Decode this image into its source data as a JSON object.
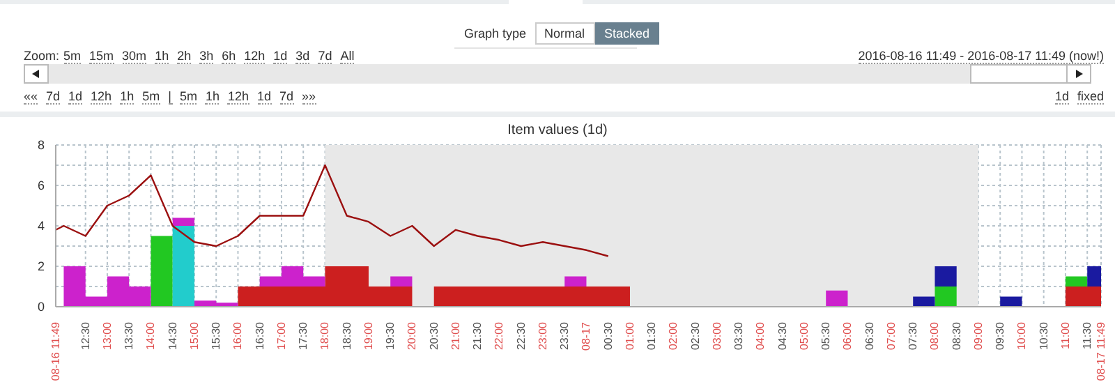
{
  "chart_data": {
    "type": "area",
    "title": "Item values (1d)",
    "stacked": true,
    "grid": true,
    "legend": false,
    "marker": "none",
    "annotations": [
      "Graph type",
      "Normal",
      "Stacked",
      "Zoom:",
      "5m",
      "15m",
      "30m",
      "1h",
      "2h",
      "3h",
      "6h",
      "12h",
      "1d",
      "3d",
      "7d",
      "All",
      "2016-08-16 11:49 - 2016-08-17 11:49 (now!)",
      "««",
      "7d",
      "1d",
      "12h",
      "1h",
      "5m",
      "|",
      "5m",
      "1h",
      "12h",
      "1d",
      "7d",
      "»»",
      "1d",
      "fixed"
    ],
    "x": [
      "2016-08-16T11:49",
      "2016-08-16T12:00",
      "2016-08-16T12:30",
      "2016-08-16T13:00",
      "2016-08-16T13:30",
      "2016-08-16T14:00",
      "2016-08-16T14:30",
      "2016-08-16T15:00",
      "2016-08-16T15:30",
      "2016-08-16T16:00",
      "2016-08-16T16:30",
      "2016-08-16T17:00",
      "2016-08-16T17:30",
      "2016-08-16T18:00",
      "2016-08-16T18:30",
      "2016-08-16T19:00",
      "2016-08-16T19:30",
      "2016-08-16T20:00",
      "2016-08-16T20:30",
      "2016-08-16T21:00",
      "2016-08-16T21:30",
      "2016-08-16T22:00",
      "2016-08-16T22:30",
      "2016-08-16T23:00",
      "2016-08-16T23:30",
      "2016-08-17T00:00",
      "2016-08-17T00:30",
      "2016-08-17T01:00",
      "2016-08-17T01:30",
      "2016-08-17T02:00",
      "2016-08-17T02:30",
      "2016-08-17T03:00",
      "2016-08-17T03:30",
      "2016-08-17T04:00",
      "2016-08-17T04:30",
      "2016-08-17T05:00",
      "2016-08-17T05:30",
      "2016-08-17T06:00",
      "2016-08-17T06:30",
      "2016-08-17T07:00",
      "2016-08-17T07:30",
      "2016-08-17T08:00",
      "2016-08-17T08:30",
      "2016-08-17T09:00",
      "2016-08-17T09:30",
      "2016-08-17T10:00",
      "2016-08-17T10:30",
      "2016-08-17T11:00",
      "2016-08-17T11:30",
      "2016-08-17T11:49"
    ],
    "series": [
      {
        "color": "#cc1f1f",
        "values": [
          0,
          0,
          0,
          0,
          0,
          0,
          0,
          0,
          0,
          1,
          1,
          1,
          1,
          2,
          2,
          1,
          1,
          0,
          1,
          1,
          1,
          1,
          1,
          1,
          1,
          1,
          1,
          0,
          0,
          0,
          0,
          0,
          0,
          0,
          0,
          0,
          0,
          0,
          0,
          0,
          0,
          0,
          0,
          0,
          0,
          0,
          0,
          1,
          1,
          0
        ]
      },
      {
        "color": "#22c822",
        "values": [
          0,
          0,
          0,
          0,
          0,
          3.5,
          0,
          0,
          0,
          0,
          0,
          0,
          0,
          0,
          0,
          0,
          0,
          0,
          0,
          0,
          0,
          0,
          0,
          0,
          0,
          0,
          0,
          0,
          0,
          0,
          0,
          0,
          0,
          0,
          0,
          0,
          0,
          0,
          0,
          0,
          0,
          1,
          0,
          0,
          0,
          0,
          0,
          0.5,
          0,
          0
        ]
      },
      {
        "color": "#22cccc",
        "values": [
          0,
          0,
          0,
          0,
          0,
          0,
          4,
          0,
          0,
          0,
          0,
          0,
          0,
          0,
          0,
          0,
          0,
          0,
          0,
          0,
          0,
          0,
          0,
          0,
          0,
          0,
          0,
          0,
          0,
          0,
          0,
          0,
          0,
          0,
          0,
          0,
          0,
          0,
          0,
          0,
          0,
          0,
          0,
          0,
          0,
          0,
          0,
          0,
          0,
          0
        ]
      },
      {
        "color": "#cc22cc",
        "values": [
          0,
          2,
          0.5,
          1.5,
          1,
          0,
          0.4,
          0.3,
          0.2,
          0,
          0.5,
          1,
          0.5,
          0,
          0,
          0,
          0.5,
          0,
          0,
          0,
          0,
          0,
          0,
          0,
          0.5,
          0,
          0,
          0,
          0,
          0,
          0,
          0,
          0,
          0,
          0,
          0,
          0.8,
          0,
          0,
          0,
          0,
          0,
          0,
          0,
          0,
          0,
          0,
          0,
          0,
          0
        ]
      },
      {
        "color": "#1a1aa0",
        "values": [
          null,
          null,
          null,
          null,
          null,
          null,
          null,
          null,
          null,
          null,
          null,
          null,
          null,
          null,
          null,
          null,
          null,
          null,
          null,
          null,
          null,
          null,
          null,
          null,
          null,
          null,
          null,
          null,
          null,
          null,
          null,
          null,
          null,
          null,
          null,
          null,
          null,
          null,
          null,
          0,
          0.5,
          1,
          0,
          0,
          0.5,
          0,
          null,
          0,
          1,
          0
        ]
      },
      {
        "type": "line",
        "color": "#9b1010",
        "values": [
          3.8,
          4,
          3.5,
          5,
          5.5,
          6.5,
          4,
          3.2,
          3,
          3.5,
          4.5,
          4.5,
          4.5,
          7,
          4.5,
          4.2,
          3.5,
          4,
          3,
          3.8,
          3.5,
          3.3,
          3,
          3.2,
          3,
          2.8,
          2.5,
          null,
          null,
          null,
          null,
          null,
          null,
          null,
          null,
          null,
          null,
          null,
          null,
          null,
          null,
          null,
          null,
          null,
          null,
          null,
          null,
          null,
          null,
          null
        ]
      }
    ],
    "bands": [
      {
        "axis": "x",
        "from": "2016-08-16T18:00",
        "to": "2016-08-17T09:00",
        "color": "#e8e8e8"
      }
    ],
    "ylim": [
      0,
      8
    ],
    "yticks": [
      0,
      {
        "value": 1,
        "label": null
      },
      2,
      {
        "value": 3,
        "label": null
      },
      4,
      {
        "value": 5,
        "label": null
      },
      6,
      {
        "value": 7,
        "label": null
      },
      8
    ],
    "xlim": [
      "2016-08-16T11:49",
      "2016-08-17T11:49"
    ],
    "xticks": [
      {
        "value": "2016-08-16T11:49",
        "label": "08-16 11:49"
      },
      {
        "value": "2016-08-16T12:30",
        "label": "12:30"
      },
      {
        "value": "2016-08-16T13:00",
        "label": "13:00"
      },
      {
        "value": "2016-08-16T13:30",
        "label": "13:30"
      },
      {
        "value": "2016-08-16T14:00",
        "label": "14:00"
      },
      {
        "value": "2016-08-16T14:30",
        "label": "14:30"
      },
      {
        "value": "2016-08-16T15:00",
        "label": "15:00"
      },
      {
        "value": "2016-08-16T15:30",
        "label": "15:30"
      },
      {
        "value": "2016-08-16T16:00",
        "label": "16:00"
      },
      {
        "value": "2016-08-16T16:30",
        "label": "16:30"
      },
      {
        "value": "2016-08-16T17:00",
        "label": "17:00"
      },
      {
        "value": "2016-08-16T17:30",
        "label": "17:30"
      },
      {
        "value": "2016-08-16T18:00",
        "label": "18:00"
      },
      {
        "value": "2016-08-16T18:30",
        "label": "18:30"
      },
      {
        "value": "2016-08-16T19:00",
        "label": "19:00"
      },
      {
        "value": "2016-08-16T19:30",
        "label": "19:30"
      },
      {
        "value": "2016-08-16T20:00",
        "label": "20:00"
      },
      {
        "value": "2016-08-16T20:30",
        "label": "20:30"
      },
      {
        "value": "2016-08-16T21:00",
        "label": "21:00"
      },
      {
        "value": "2016-08-16T21:30",
        "label": "21:30"
      },
      {
        "value": "2016-08-16T22:00",
        "label": "22:00"
      },
      {
        "value": "2016-08-16T22:30",
        "label": "22:30"
      },
      {
        "value": "2016-08-16T23:00",
        "label": "23:00"
      },
      {
        "value": "2016-08-16T23:30",
        "label": "23:30"
      },
      {
        "value": "2016-08-17T00:00",
        "label": "08-17"
      },
      {
        "value": "2016-08-17T00:30",
        "label": "00:30"
      },
      {
        "value": "2016-08-17T01:00",
        "label": "01:00"
      },
      {
        "value": "2016-08-17T01:30",
        "label": "01:30"
      },
      {
        "value": "2016-08-17T02:00",
        "label": "02:00"
      },
      {
        "value": "2016-08-17T02:30",
        "label": "02:30"
      },
      {
        "value": "2016-08-17T03:00",
        "label": "03:00"
      },
      {
        "value": "2016-08-17T03:30",
        "label": "03:30"
      },
      {
        "value": "2016-08-17T04:00",
        "label": "04:00"
      },
      {
        "value": "2016-08-17T04:30",
        "label": "04:30"
      },
      {
        "value": "2016-08-17T05:00",
        "label": "05:00"
      },
      {
        "value": "2016-08-17T05:30",
        "label": "05:30"
      },
      {
        "value": "2016-08-17T06:00",
        "label": "06:00"
      },
      {
        "value": "2016-08-17T06:30",
        "label": "06:30"
      },
      {
        "value": "2016-08-17T07:00",
        "label": "07:00"
      },
      {
        "value": "2016-08-17T07:30",
        "label": "07:30"
      },
      {
        "value": "2016-08-17T08:00",
        "label": "08:00"
      },
      {
        "value": "2016-08-17T08:30",
        "label": "08:30"
      },
      {
        "value": "2016-08-17T09:00",
        "label": "09:00"
      },
      {
        "value": "2016-08-17T09:30",
        "label": "09:30"
      },
      {
        "value": "2016-08-17T10:00",
        "label": "10:00"
      },
      {
        "value": "2016-08-17T10:30",
        "label": "10:30"
      },
      {
        "value": "2016-08-17T11:00",
        "label": "11:00"
      },
      {
        "value": "2016-08-17T11:30",
        "label": "11:30"
      },
      {
        "value": "2016-08-17T11:49",
        "label": "08-17 11:49"
      }
    ]
  }
}
